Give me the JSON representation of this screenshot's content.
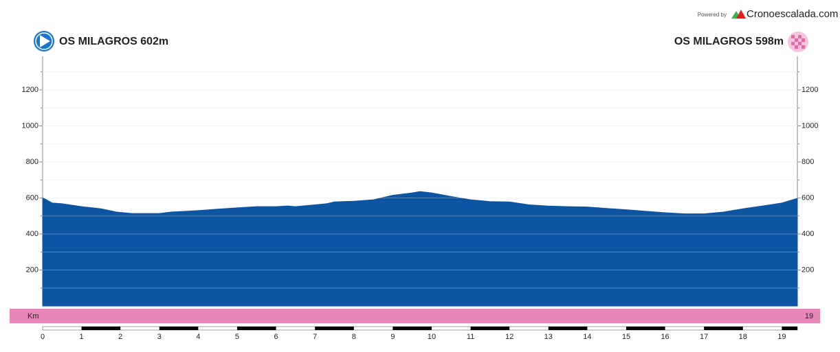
{
  "chart_data": {
    "type": "area",
    "powered_by": "Powered by",
    "brand": "Cronoescalada.com",
    "start_title": "OS MILAGROS  602m",
    "end_title": "OS MILAGROS 598m",
    "km_label": "Km",
    "total_km": 19,
    "color": "#0d55a3",
    "x": [
      0,
      0.25,
      0.5,
      1,
      1.5,
      1.9,
      2.3,
      3,
      3.3,
      4,
      4.5,
      5,
      5.5,
      6,
      6.3,
      6.5,
      7,
      7.3,
      7.5,
      8,
      8.5,
      9,
      9.5,
      9.7,
      10,
      10.5,
      11,
      11.5,
      12,
      12.5,
      13,
      13.5,
      14,
      14.5,
      15,
      15.5,
      16,
      16.5,
      17,
      17.5,
      18,
      18.5,
      19,
      19.4
    ],
    "values": [
      602,
      572,
      568,
      552,
      540,
      522,
      514,
      514,
      522,
      530,
      538,
      545,
      552,
      552,
      556,
      552,
      562,
      568,
      578,
      582,
      590,
      615,
      628,
      636,
      628,
      608,
      590,
      580,
      578,
      562,
      555,
      552,
      550,
      542,
      535,
      526,
      518,
      512,
      512,
      522,
      540,
      556,
      572,
      598
    ],
    "xlim": [
      0,
      19.4
    ],
    "xticks": [
      0,
      1,
      2,
      3,
      4,
      5,
      6,
      7,
      8,
      9,
      10,
      11,
      12,
      13,
      14,
      15,
      16,
      17,
      18,
      19
    ],
    "ylim": [
      0,
      1400
    ],
    "yticks": [
      200,
      400,
      600,
      800,
      1000,
      1200
    ],
    "minor_yticks": [
      100,
      300,
      500,
      700,
      900,
      1100,
      1300
    ],
    "grid": true
  }
}
